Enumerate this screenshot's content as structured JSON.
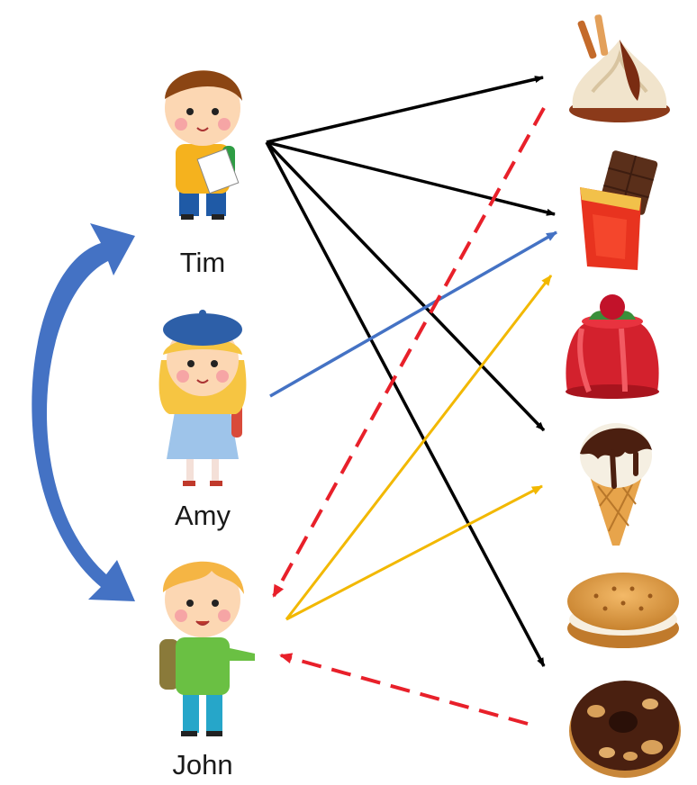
{
  "people": [
    {
      "id": "tim",
      "name": "Tim",
      "icon": "boy-with-paper-icon"
    },
    {
      "id": "amy",
      "name": "Amy",
      "icon": "girl-with-beret-icon"
    },
    {
      "id": "john",
      "name": "John",
      "icon": "boy-with-backpack-icon"
    }
  ],
  "foods": [
    {
      "id": "sundae",
      "icon": "ice-cream-sundae-icon"
    },
    {
      "id": "chocolate",
      "icon": "chocolate-bar-icon"
    },
    {
      "id": "jelly",
      "icon": "jelly-pudding-icon"
    },
    {
      "id": "cone",
      "icon": "ice-cream-cone-icon"
    },
    {
      "id": "cookie",
      "icon": "sandwich-cookie-icon"
    },
    {
      "id": "donut",
      "icon": "chocolate-donut-icon"
    }
  ],
  "edge_colors": {
    "tim": "#000000",
    "amy": "#4472c4",
    "john": "#f2b800",
    "inferred": "#e8202a",
    "social": "#4472c4"
  },
  "edges": [
    {
      "from": "tim",
      "to": "sundae",
      "kind": "tim"
    },
    {
      "from": "tim",
      "to": "chocolate",
      "kind": "tim"
    },
    {
      "from": "tim",
      "to": "cone",
      "kind": "tim"
    },
    {
      "from": "tim",
      "to": "donut",
      "kind": "tim"
    },
    {
      "from": "amy",
      "to": "chocolate",
      "kind": "amy"
    },
    {
      "from": "john",
      "to": "chocolate",
      "kind": "john"
    },
    {
      "from": "john",
      "to": "cone",
      "kind": "john"
    },
    {
      "from": "sundae",
      "to": "john",
      "kind": "inferred",
      "dashed": true
    },
    {
      "from": "donut",
      "to": "john",
      "kind": "inferred",
      "dashed": true
    }
  ],
  "social_link": {
    "between": [
      "tim",
      "john"
    ],
    "bidirectional": true
  }
}
